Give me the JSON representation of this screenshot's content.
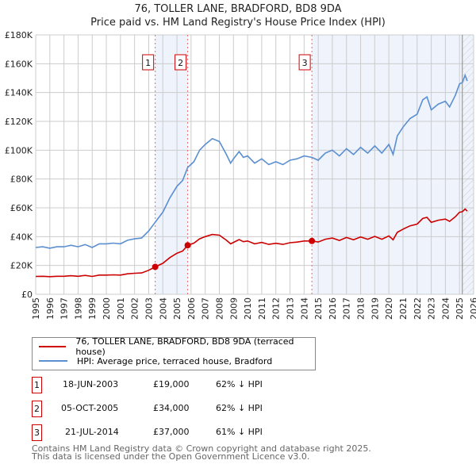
{
  "chart_data": {
    "type": "line",
    "title": "76, TOLLER LANE, BRADFORD, BD8 9DA",
    "subtitle": "Price paid vs. HM Land Registry's House Price Index (HPI)",
    "xlim": [
      1995,
      2026
    ],
    "ylim": [
      0,
      180000
    ],
    "yticks": [
      {
        "v": 0,
        "l": "£0"
      },
      {
        "v": 20000,
        "l": "£20K"
      },
      {
        "v": 40000,
        "l": "£40K"
      },
      {
        "v": 60000,
        "l": "£60K"
      },
      {
        "v": 80000,
        "l": "£80K"
      },
      {
        "v": 100000,
        "l": "£100K"
      },
      {
        "v": 120000,
        "l": "£120K"
      },
      {
        "v": 140000,
        "l": "£140K"
      },
      {
        "v": 160000,
        "l": "£160K"
      },
      {
        "v": 180000,
        "l": "£180K"
      }
    ],
    "xticks": [
      "1995",
      "1996",
      "1997",
      "1998",
      "1999",
      "2000",
      "2001",
      "2002",
      "2003",
      "2004",
      "2005",
      "2006",
      "2007",
      "2008",
      "2009",
      "2010",
      "2011",
      "2012",
      "2013",
      "2014",
      "2015",
      "2016",
      "2017",
      "2018",
      "2019",
      "2020",
      "2021",
      "2022",
      "2023",
      "2024",
      "2025",
      "2026"
    ],
    "grid": true,
    "series": [
      {
        "name": "HPI: Average price, terraced house, Bradford",
        "color": "#5b8fd0",
        "x": [
          1995,
          1995.5,
          1996,
          1996.5,
          1997,
          1997.5,
          1998,
          1998.5,
          1999,
          1999.5,
          2000,
          2000.5,
          2001,
          2001.5,
          2002,
          2002.5,
          2003,
          2003.46,
          2004,
          2004.5,
          2005,
          2005.4,
          2005.76,
          2006.2,
          2006.6,
          2007,
          2007.5,
          2008,
          2008.5,
          2008.8,
          2009,
          2009.4,
          2009.7,
          2010,
          2010.5,
          2011,
          2011.5,
          2012,
          2012.5,
          2013,
          2013.5,
          2014,
          2014.55,
          2015,
          2015.5,
          2016,
          2016.5,
          2017,
          2017.5,
          2018,
          2018.5,
          2019,
          2019.5,
          2020,
          2020.3,
          2020.6,
          2021,
          2021.5,
          2022,
          2022.4,
          2022.7,
          2023,
          2023.5,
          2024,
          2024.3,
          2024.7,
          2025,
          2025.2,
          2025.4,
          2025.55
        ],
        "y": [
          32500,
          33000,
          32000,
          33000,
          33000,
          34000,
          33000,
          34500,
          32500,
          35000,
          35000,
          35500,
          35000,
          37500,
          38500,
          39000,
          44000,
          50000,
          57000,
          67000,
          75000,
          79000,
          88000,
          92000,
          100000,
          104000,
          108000,
          106000,
          97000,
          91000,
          94000,
          99000,
          95000,
          96000,
          91000,
          94000,
          90000,
          92000,
          90000,
          93000,
          94000,
          96000,
          95000,
          93000,
          98000,
          100000,
          96000,
          101000,
          97000,
          102000,
          98000,
          103000,
          98000,
          104000,
          97000,
          110000,
          116000,
          122000,
          125000,
          135000,
          137000,
          128000,
          132000,
          134000,
          130000,
          138000,
          146000,
          147000,
          152000,
          148000
        ]
      },
      {
        "name": "76, TOLLER LANE, BRADFORD, BD8 9DA (terraced house)",
        "color": "#cc0000",
        "x": [
          1995,
          1995.5,
          1996,
          1996.5,
          1997,
          1997.5,
          1998,
          1998.5,
          1999,
          1999.5,
          2000,
          2000.5,
          2001,
          2001.5,
          2002,
          2002.5,
          2003,
          2003.46,
          2004,
          2004.5,
          2005,
          2005.4,
          2005.76,
          2006.2,
          2006.6,
          2007,
          2007.5,
          2008,
          2008.5,
          2008.8,
          2009,
          2009.4,
          2009.7,
          2010,
          2010.5,
          2011,
          2011.5,
          2012,
          2012.5,
          2013,
          2013.5,
          2014,
          2014.55,
          2015,
          2015.5,
          2016,
          2016.5,
          2017,
          2017.5,
          2018,
          2018.5,
          2019,
          2019.5,
          2020,
          2020.3,
          2020.6,
          2021,
          2021.5,
          2022,
          2022.4,
          2022.7,
          2023,
          2023.5,
          2024,
          2024.3,
          2024.7,
          2025,
          2025.2,
          2025.4,
          2025.55
        ],
        "y": [
          12400,
          12500,
          12200,
          12500,
          12500,
          12900,
          12500,
          13100,
          12400,
          13300,
          13300,
          13500,
          13300,
          14200,
          14600,
          14800,
          16700,
          19000,
          21500,
          25500,
          28500,
          30000,
          34000,
          35500,
          38500,
          40000,
          41500,
          41000,
          37500,
          35000,
          36000,
          38000,
          36500,
          37000,
          35000,
          36000,
          34600,
          35400,
          34600,
          35800,
          36200,
          37000,
          37000,
          36300,
          38200,
          39000,
          37400,
          39400,
          37800,
          39800,
          38200,
          40200,
          38200,
          40500,
          37800,
          43000,
          45200,
          47500,
          48700,
          52600,
          53400,
          49900,
          51400,
          52200,
          50600,
          53800,
          56900,
          57300,
          59200,
          57700
        ]
      }
    ],
    "sales": [
      {
        "label": "1",
        "x": 2003.46,
        "price": 19000,
        "date": "18-JUN-2003",
        "price_text": "£19,000",
        "hpi_text": "62% ↓ HPI"
      },
      {
        "label": "2",
        "x": 2005.76,
        "price": 34000,
        "date": "05-OCT-2005",
        "price_text": "£34,000",
        "hpi_text": "62% ↓ HPI"
      },
      {
        "label": "3",
        "x": 2014.55,
        "price": 37000,
        "date": "21-JUL-2014",
        "price_text": "£37,000",
        "hpi_text": "61% ↓ HPI"
      }
    ],
    "forecast_start": 2025.2,
    "legend_position": "below"
  },
  "footer": [
    "Contains HM Land Registry data © Crown copyright and database right 2025.",
    "This data is licensed under the Open Government Licence v3.0."
  ]
}
